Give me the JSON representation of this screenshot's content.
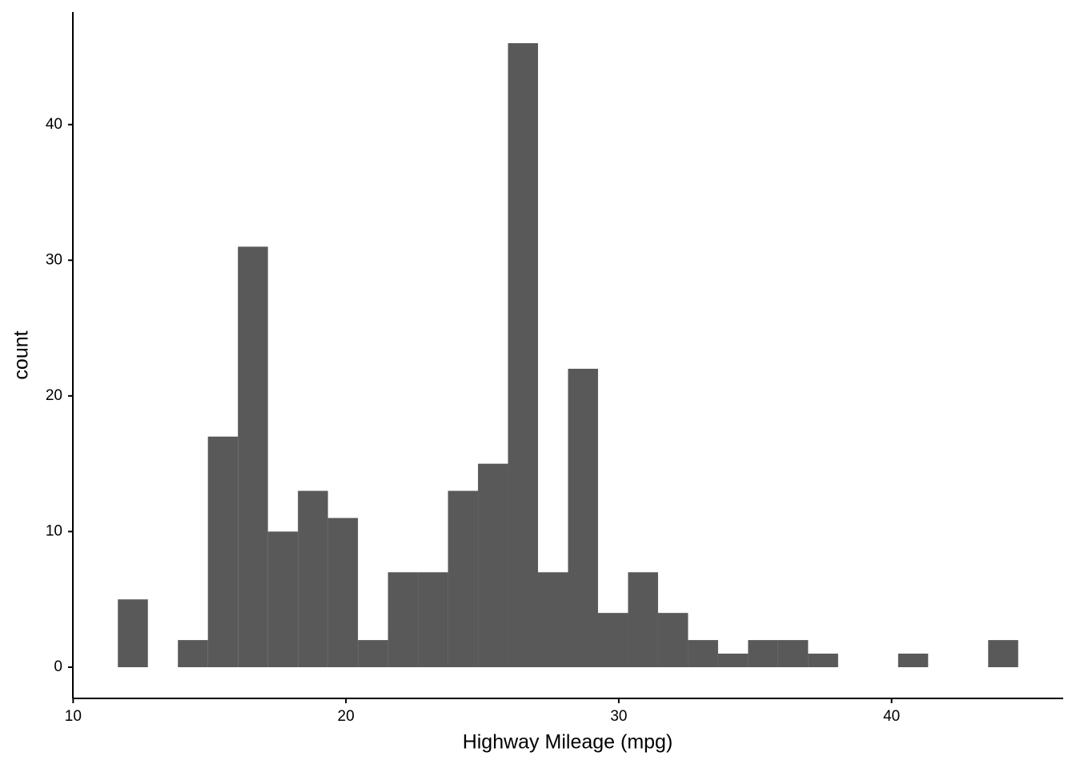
{
  "chart_data": {
    "type": "histogram",
    "x_label": "Highway Mileage (mpg)",
    "y_label": "count",
    "bins": [
      11.64,
      12.74,
      13.84,
      14.94,
      16.04,
      17.14,
      18.24,
      19.34,
      20.44,
      21.54,
      22.64,
      23.74,
      24.84,
      25.94,
      27.04,
      28.14,
      29.24,
      30.34,
      31.44,
      32.54,
      33.64,
      34.74,
      35.84,
      36.94,
      38.04,
      39.14,
      40.24,
      41.34,
      42.44,
      43.54,
      44.64
    ],
    "values": [
      5,
      0,
      2,
      17,
      31,
      10,
      13,
      11,
      2,
      7,
      7,
      13,
      15,
      46,
      7,
      22,
      4,
      7,
      4,
      2,
      1,
      2,
      2,
      1,
      0,
      0,
      1,
      0,
      0,
      2
    ],
    "color": "#595959",
    "xlim": [
      9.99,
      46.29
    ],
    "xticks": [
      10,
      20,
      30,
      40
    ],
    "ylim": [
      -2.3,
      48.3
    ],
    "yticks": [
      0,
      10,
      20,
      30,
      40
    ],
    "grid": false
  }
}
